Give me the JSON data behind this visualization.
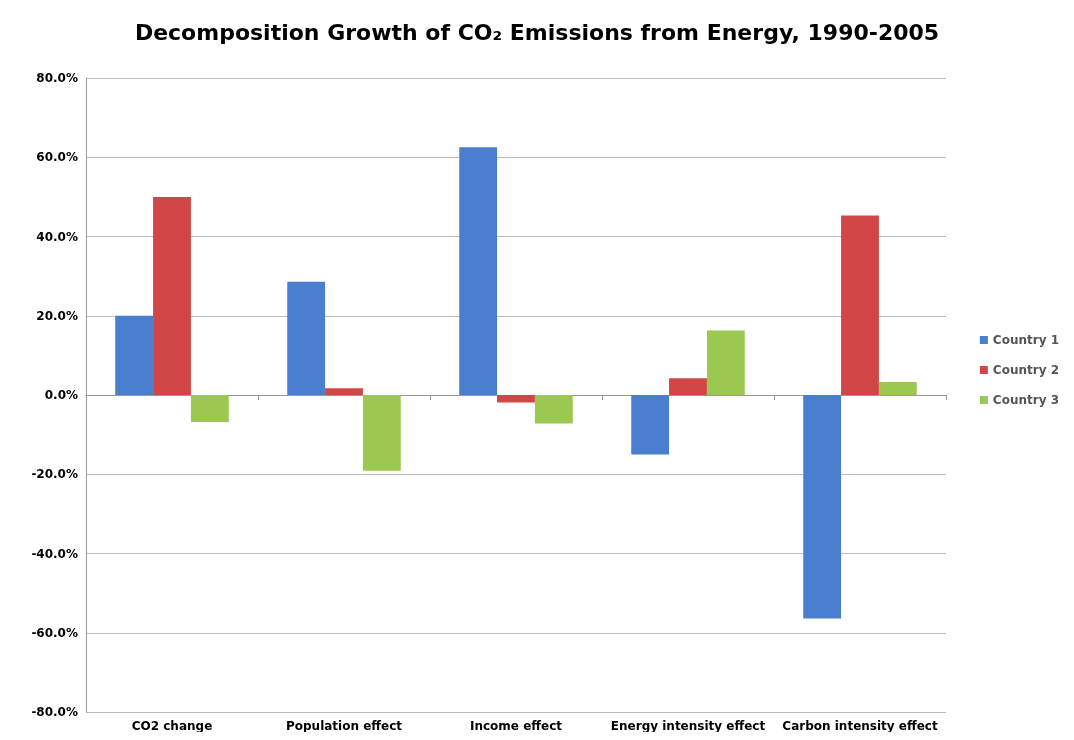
{
  "chart_data": {
    "type": "bar",
    "title": "Decomposition Growth of CO₂ Emissions from Energy, 1990-2005",
    "categories": [
      "CO2 change",
      "Population effect",
      "Income effect",
      "Energy intensity effect",
      "Carbon intensity effect"
    ],
    "series": [
      {
        "name": "Country 1",
        "color": "#4a7fcf",
        "values": [
          20,
          28.6,
          62.5,
          -15,
          -56.4
        ]
      },
      {
        "name": "Country 2",
        "color": "#d04545",
        "values": [
          50,
          1.7,
          -1.9,
          4.2,
          45.3
        ]
      },
      {
        "name": "Country 3",
        "color": "#9bc850",
        "values": [
          -6.8,
          -19.1,
          -7.2,
          16.3,
          3.3
        ]
      }
    ],
    "ylim": [
      -80,
      80
    ],
    "yticks": [
      {
        "value": -80,
        "label": "-80.0%"
      },
      {
        "value": -60,
        "label": "-60.0%"
      },
      {
        "value": -40,
        "label": "-40.0%"
      },
      {
        "value": -20,
        "label": "-20.0%"
      },
      {
        "value": 0,
        "label": "0.0%"
      },
      {
        "value": 20,
        "label": "20.0%"
      },
      {
        "value": 40,
        "label": "40.0%"
      },
      {
        "value": 60,
        "label": "60.0%"
      },
      {
        "value": 80,
        "label": "80.0%"
      }
    ],
    "grid": "y",
    "legend": "right"
  }
}
